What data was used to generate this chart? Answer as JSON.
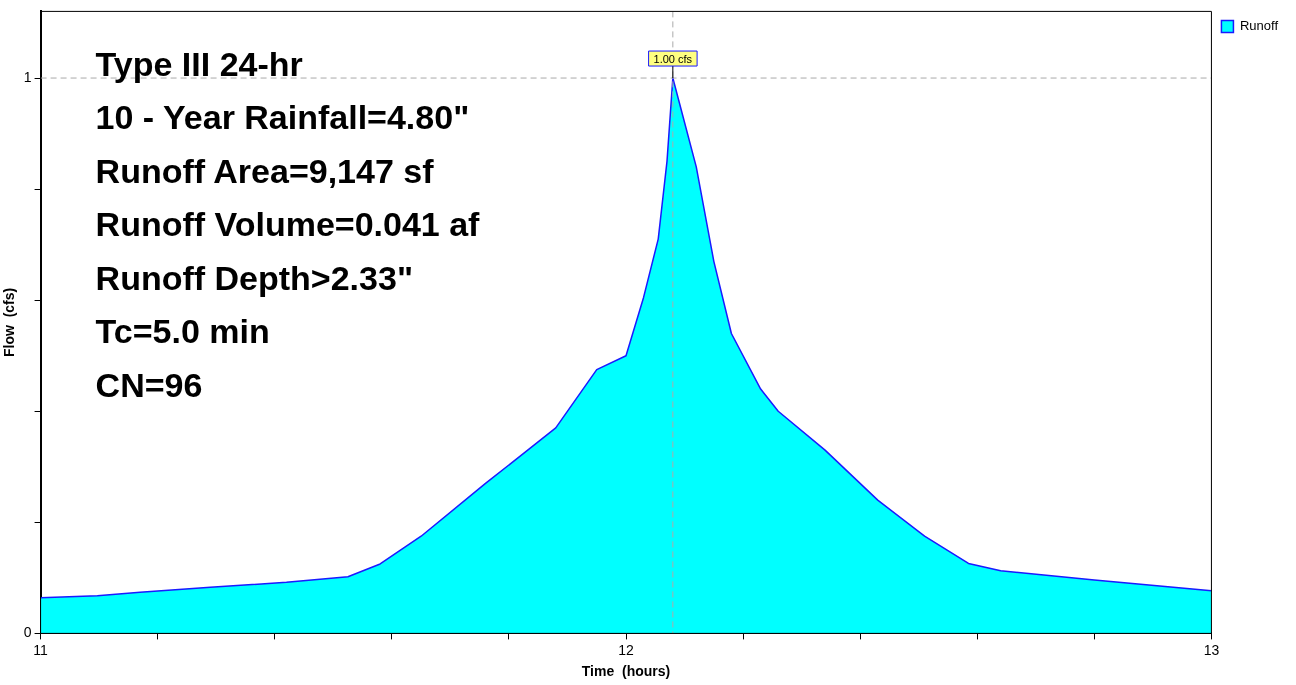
{
  "chart_data": {
    "type": "area",
    "xlabel": "Time  (hours)",
    "ylabel": "Flow  (cfs)",
    "x": [
      11.0,
      11.097,
      11.17,
      11.29,
      11.42,
      11.525,
      11.58,
      11.65,
      11.76,
      11.88,
      11.95,
      12.0,
      12.03,
      12.055,
      12.07,
      12.08,
      12.09,
      12.12,
      12.15,
      12.18,
      12.23,
      12.26,
      12.34,
      12.43,
      12.51,
      12.585,
      12.64,
      12.8,
      13.0
    ],
    "series": [
      {
        "name": "Runoff",
        "color": "#00ffff",
        "values": [
          0.064,
          0.068,
          0.074,
          0.083,
          0.092,
          0.102,
          0.125,
          0.175,
          0.27,
          0.37,
          0.475,
          0.5,
          0.605,
          0.71,
          0.85,
          1.0,
          0.96,
          0.84,
          0.67,
          0.54,
          0.44,
          0.4,
          0.33,
          0.24,
          0.175,
          0.126,
          0.113,
          0.096,
          0.077
        ]
      }
    ],
    "xlim": [
      11,
      13
    ],
    "ylim": [
      0,
      1.12
    ],
    "xticks": [
      11,
      {
        "value": 11.2,
        "label": null
      },
      {
        "value": 11.4,
        "label": null
      },
      {
        "value": 11.6,
        "label": null
      },
      {
        "value": 11.8,
        "label": null
      },
      12,
      {
        "value": 12.2,
        "label": null
      },
      {
        "value": 12.4,
        "label": null
      },
      {
        "value": 12.6,
        "label": null
      },
      {
        "value": 12.8,
        "label": null
      },
      13
    ],
    "yticks": [
      0,
      {
        "value": 0.2,
        "label": null
      },
      {
        "value": 0.4,
        "label": null
      },
      {
        "value": 0.6,
        "label": null
      },
      {
        "value": 0.8,
        "label": null
      },
      1
    ],
    "grid": false,
    "legend": "top right",
    "marker": "none",
    "line_style": "solid",
    "ref_lines": [
      {
        "axis": "x",
        "value": 12.08,
        "color": "#aaaaaa",
        "line_style": "dashed"
      },
      {
        "axis": "y",
        "value": 1.0,
        "color": "#aaaaaa",
        "line_style": "dashed"
      }
    ],
    "annotations": [
      "Type III 24-hr",
      "10 - Year Rainfall=4.80\"",
      "Runoff Area=9,147 sf",
      "Runoff Volume=0.041 af",
      "Runoff Depth>2.33\"",
      "Tc=5.0 min",
      "CN=96",
      {
        "text": "1.00 cfs",
        "x": 12.08,
        "y": 1.0
      }
    ]
  }
}
